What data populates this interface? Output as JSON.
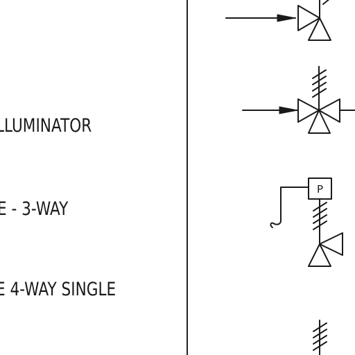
{
  "labels": [
    "LLUMINATOR",
    "E - 3-WAY",
    "E 4-WAY SINGLE"
  ],
  "symbols": {
    "actuator_letter": "P"
  },
  "colors": {
    "ink": "#1a1a1a",
    "background": "#ffffff"
  }
}
